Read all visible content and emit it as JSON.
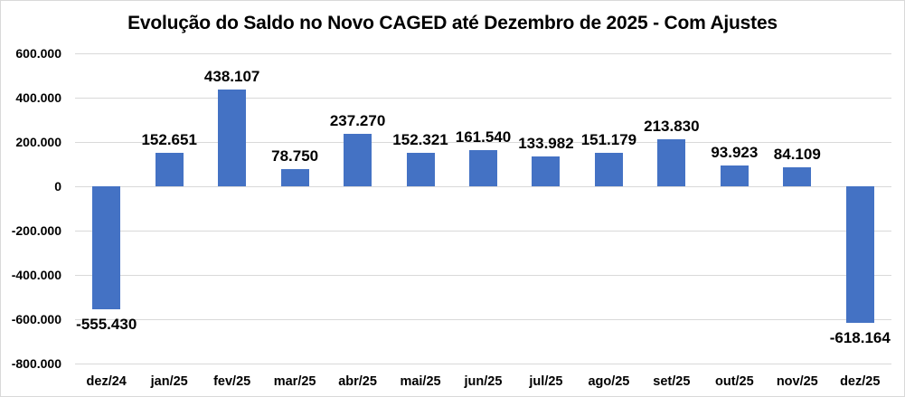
{
  "page": {
    "background": "#FFFFFF",
    "frame_border_color": "#D9D9D9"
  },
  "chart_data": {
    "type": "bar",
    "title": "Evolução do Saldo no Novo CAGED até Dezembro de 2025 - Com Ajustes",
    "categories": [
      "dez/24",
      "jan/25",
      "fev/25",
      "mar/25",
      "abr/25",
      "mai/25",
      "jun/25",
      "jul/25",
      "ago/25",
      "set/25",
      "out/25",
      "nov/25",
      "dez/25"
    ],
    "values": [
      -555430,
      152651,
      438107,
      78750,
      237270,
      152321,
      161540,
      133982,
      151179,
      213830,
      93923,
      84109,
      -618164
    ],
    "data_labels": [
      "-555.430",
      "152.651",
      "438.107",
      "78.750",
      "237.270",
      "152.321",
      "161.540",
      "133.982",
      "151.179",
      "213.830",
      "93.923",
      "84.109",
      "-618.164"
    ],
    "xlabel": "",
    "ylabel": "",
    "ylim": [
      -800000,
      600000
    ],
    "ytick_interval": 200000,
    "yticks": [
      {
        "value": 600000,
        "label": "600.000"
      },
      {
        "value": 400000,
        "label": "400.000"
      },
      {
        "value": 200000,
        "label": "200.000"
      },
      {
        "value": 0,
        "label": "0"
      },
      {
        "value": -200000,
        "label": "-200.000"
      },
      {
        "value": -400000,
        "label": "-400.000"
      },
      {
        "value": -600000,
        "label": "-600.000"
      },
      {
        "value": -800000,
        "label": "-800.000"
      }
    ],
    "grid": true,
    "legend": "none",
    "data_label_position": "outside-end",
    "bar_color": "#4472C4",
    "gridline_color": "#D9D9D9",
    "text_color": "#000000"
  }
}
